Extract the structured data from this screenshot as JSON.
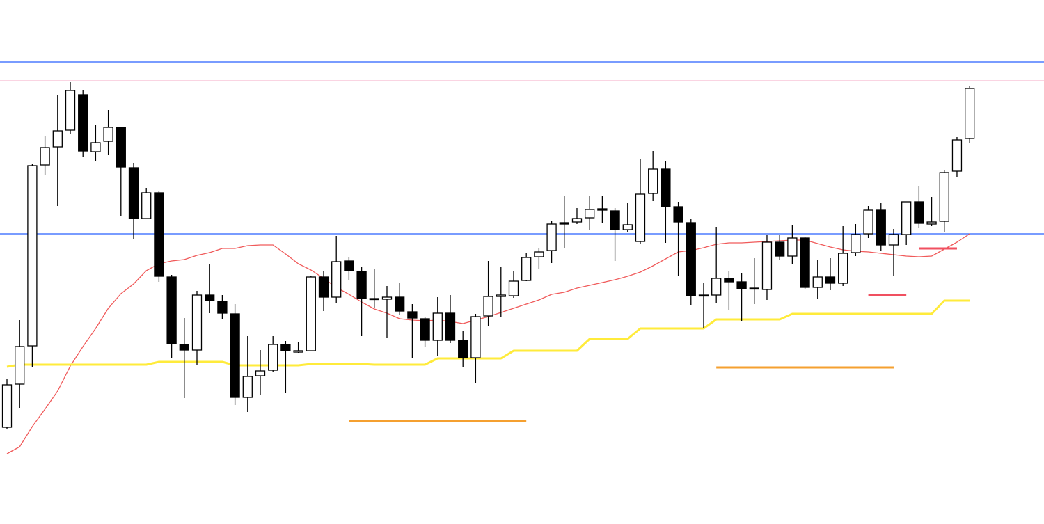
{
  "chart_data": {
    "type": "candlestick",
    "xlim": [
      -0.55,
      81.87
    ],
    "ylim": [
      0,
      753
    ],
    "up_color": "#ffffff",
    "down_color": "#000000",
    "candles": {
      "open": [
        139,
        201,
        256,
        516,
        542,
        566,
        617,
        535,
        550,
        570,
        512,
        439,
        476,
        355,
        258,
        250,
        329,
        320,
        302,
        182,
        213,
        221,
        258,
        247,
        249,
        355,
        326,
        378,
        363,
        324,
        323,
        326,
        305,
        295,
        264,
        303,
        264,
        239,
        299,
        327,
        328,
        350,
        384,
        393,
        433,
        434,
        440,
        453,
        450,
        423,
        406,
        475,
        510,
        456,
        433,
        329,
        329,
        353,
        348,
        339,
        337,
        405,
        385,
        411,
        340,
        355,
        346,
        390,
        417,
        451,
        401,
        416,
        463,
        431,
        435,
        507,
        554
      ],
      "high": [
        208,
        293,
        518,
        558,
        616,
        635,
        624,
        573,
        595,
        571,
        519,
        483,
        479,
        358,
        296,
        335,
        373,
        329,
        316,
        270,
        250,
        270,
        263,
        261,
        357,
        363,
        414,
        384,
        370,
        366,
        342,
        347,
        316,
        298,
        326,
        329,
        277,
        302,
        378,
        369,
        364,
        390,
        397,
        435,
        471,
        454,
        471,
        472,
        454,
        461,
        525,
        536,
        521,
        463,
        439,
        347,
        427,
        363,
        360,
        382,
        415,
        416,
        429,
        413,
        380,
        382,
        428,
        431,
        457,
        461,
        424,
        463,
        486,
        470,
        508,
        556,
        630
      ],
      "low": [
        137,
        167,
        225,
        501,
        457,
        560,
        527,
        522,
        530,
        443,
        409,
        439,
        348,
        238,
        181,
        229,
        303,
        295,
        171,
        161,
        185,
        219,
        188,
        246,
        249,
        306,
        317,
        350,
        270,
        311,
        268,
        301,
        239,
        255,
        242,
        260,
        226,
        203,
        285,
        298,
        325,
        349,
        367,
        375,
        396,
        431,
        422,
        433,
        378,
        420,
        403,
        464,
        404,
        357,
        315,
        282,
        317,
        308,
        292,
        316,
        322,
        380,
        373,
        337,
        323,
        336,
        342,
        385,
        411,
        392,
        356,
        401,
        426,
        428,
        420,
        498,
        547
      ],
      "close": [
        200,
        255,
        515,
        541,
        565,
        623,
        536,
        548,
        570,
        513,
        439,
        476,
        356,
        259,
        250,
        329,
        321,
        303,
        182,
        212,
        220,
        258,
        249,
        249,
        355,
        326,
        377,
        364,
        324,
        323,
        326,
        306,
        296,
        264,
        303,
        264,
        239,
        298,
        327,
        329,
        349,
        383,
        391,
        431,
        431,
        439,
        452,
        451,
        423,
        430,
        474,
        510,
        456,
        434,
        328,
        328,
        353,
        348,
        338,
        338,
        405,
        385,
        411,
        340,
        355,
        346,
        389,
        416,
        451,
        401,
        416,
        463,
        432,
        434,
        505,
        552,
        626
      ]
    },
    "series": [
      {
        "color": "#f05a5a",
        "values": [
          101,
          111,
          140,
          165,
          191,
          227,
          255,
          281,
          310,
          331,
          345,
          364,
          374,
          378,
          380,
          386,
          390,
          396,
          396,
          400,
          401,
          401,
          388,
          374,
          365,
          353,
          340,
          330,
          319,
          309,
          303,
          295,
          293,
          292,
          293,
          291,
          288,
          293,
          298,
          304,
          310,
          316,
          322,
          330,
          333,
          339,
          343,
          347,
          351,
          356,
          362,
          371,
          381,
          391,
          393,
          397,
          402,
          404,
          404,
          405,
          406,
          407,
          408,
          408,
          403,
          398,
          394,
          392,
          391,
          389,
          387,
          385,
          384,
          385,
          395,
          405,
          417
        ]
      },
      {
        "color": "#ffeb3b",
        "values": [
          226,
          229,
          229,
          229,
          229,
          229,
          229,
          229,
          229,
          229,
          229,
          229,
          233,
          233,
          233,
          233,
          233,
          233,
          228,
          228,
          228,
          228,
          228,
          228,
          230,
          230,
          230,
          230,
          230,
          229,
          229,
          229,
          229,
          229,
          238,
          238,
          238,
          238,
          238,
          238,
          249,
          249,
          249,
          249,
          249,
          249,
          266,
          266,
          266,
          266,
          281,
          281,
          281,
          281,
          281,
          281,
          294,
          294,
          294,
          294,
          294,
          294,
          302,
          302,
          302,
          302,
          302,
          302,
          302,
          302,
          302,
          302,
          302,
          302,
          321,
          321,
          321
        ]
      }
    ],
    "levels": [
      {
        "value": 664,
        "color": "#2962ff"
      },
      {
        "value": 637,
        "color": "#f8bbd0"
      },
      {
        "value": 417,
        "color": "#2962ff"
      }
    ],
    "segments": [
      {
        "value": 148,
        "x": [
          27,
          41
        ],
        "color": "#f5a030"
      },
      {
        "value": 225,
        "x": [
          56,
          70
        ],
        "color": "#f5a030"
      },
      {
        "value": 329,
        "x": [
          68,
          71
        ],
        "color": "#f05060"
      },
      {
        "value": 396,
        "x": [
          72,
          75
        ],
        "color": "#f05060"
      }
    ]
  }
}
